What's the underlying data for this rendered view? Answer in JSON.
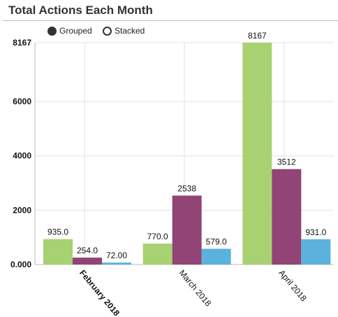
{
  "panel": {
    "title": "Total Actions Each Month"
  },
  "controls": {
    "grouped_label": "Grouped",
    "stacked_label": "Stacked",
    "selected": "Grouped"
  },
  "colors": {
    "series": [
      "#a3cf6a",
      "#8b3a6e",
      "#52aedb"
    ],
    "grid": "#e3e3e3",
    "axis": "#bbbbbb"
  },
  "chart_data": {
    "type": "bar",
    "categories": [
      "February 2018",
      "March 2018",
      "April 2018"
    ],
    "highlighted_category": "February 2018",
    "series": [
      {
        "values": [
          935.0,
          770.0,
          8167
        ]
      },
      {
        "values": [
          254.0,
          2538,
          3512
        ]
      },
      {
        "values": [
          72.0,
          579.0,
          931.0
        ]
      }
    ],
    "value_labels": [
      [
        "935.0",
        "770.0",
        "8167"
      ],
      [
        "254.0",
        "2538",
        "3512"
      ],
      [
        "72.00",
        "579.0",
        "931.0"
      ]
    ],
    "y_ticks": [
      0,
      2000,
      4000,
      6000,
      8167
    ],
    "y_tick_labels": [
      "0.000",
      "2000",
      "4000",
      "6000",
      "8167"
    ],
    "ylim": [
      0,
      8167
    ],
    "grid": true,
    "xlabel": "",
    "ylabel": ""
  }
}
